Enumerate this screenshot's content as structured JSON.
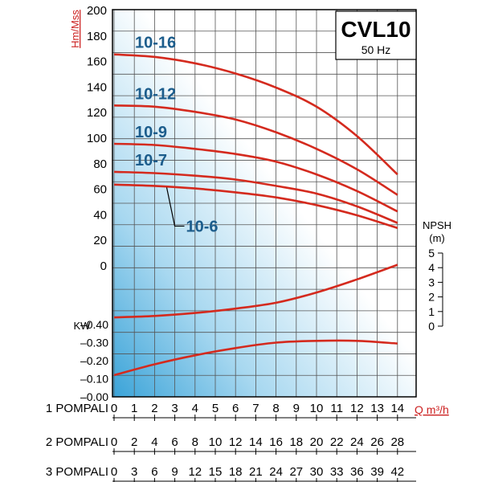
{
  "model_box": {
    "title": "CVL10",
    "frequency": "50 Hz"
  },
  "chart_data": {
    "type": "line",
    "title": "CVL10",
    "subtitle": "50 Hz",
    "grid": true,
    "colors": {
      "curve": "#d42a1e",
      "model_label": "#1c5d8c",
      "axis_label": "#cc2222",
      "grid": "#555555"
    },
    "head_axis": {
      "label": "Hm/Mss",
      "range": [
        0,
        200
      ],
      "tick_labels": [
        "200",
        "180",
        "160",
        "140",
        "120",
        "100",
        "80",
        "60",
        "40",
        "20",
        "0"
      ]
    },
    "npsh_axis": {
      "label": "NPSH",
      "unit": "(m)",
      "range": [
        0,
        5
      ],
      "tick_labels": [
        "5",
        "4",
        "3",
        "2",
        "1",
        "0"
      ]
    },
    "power_axis": {
      "label": "KW",
      "range": [
        0,
        0.4
      ],
      "tick_labels": [
        "–0.40",
        "–0.30",
        "–0.20",
        "–0.10",
        "–0.00"
      ]
    },
    "flow_axis": {
      "label": "Q m³/h",
      "rows": [
        {
          "name": "1 POMPALI",
          "ticks": [
            "0",
            "1",
            "2",
            "3",
            "4",
            "5",
            "6",
            "7",
            "8",
            "9",
            "10",
            "11",
            "12",
            "13",
            "14"
          ]
        },
        {
          "name": "2 POMPALI",
          "ticks": [
            "0",
            "2",
            "4",
            "6",
            "8",
            "10",
            "12",
            "14",
            "16",
            "18",
            "20",
            "22",
            "24",
            "26",
            "28"
          ]
        },
        {
          "name": "3 POMPALI",
          "ticks": [
            "0",
            "3",
            "6",
            "9",
            "12",
            "15",
            "18",
            "21",
            "24",
            "27",
            "30",
            "33",
            "36",
            "39",
            "42"
          ]
        }
      ]
    },
    "series": [
      {
        "name": "10-16",
        "x": [
          0,
          2,
          4,
          6,
          8,
          10,
          12,
          14
        ],
        "y": [
          165,
          163,
          158,
          150,
          139,
          124,
          101,
          71
        ]
      },
      {
        "name": "10-12",
        "x": [
          0,
          2,
          4,
          6,
          8,
          10,
          12,
          14
        ],
        "y": [
          125,
          124,
          120,
          114,
          104,
          91,
          75,
          55
        ]
      },
      {
        "name": "10-9",
        "x": [
          0,
          2,
          4,
          6,
          8,
          10,
          12,
          14
        ],
        "y": [
          95,
          94,
          91,
          87,
          81,
          71,
          58,
          42
        ]
      },
      {
        "name": "10-7",
        "x": [
          0,
          2,
          4,
          6,
          8,
          10,
          12,
          14
        ],
        "y": [
          73,
          72,
          70,
          67,
          62,
          56,
          46,
          33
        ]
      },
      {
        "name": "10-6",
        "x": [
          0,
          2,
          4,
          6,
          8,
          10,
          12,
          14
        ],
        "y": [
          63,
          62,
          60,
          57,
          53,
          47,
          39,
          29
        ]
      }
    ],
    "npsh_curve": {
      "x": [
        0,
        2,
        4,
        6,
        8,
        10,
        12,
        14
      ],
      "y": [
        0.6,
        0.7,
        0.9,
        1.2,
        1.6,
        2.3,
        3.2,
        4.2
      ]
    },
    "power_curve": {
      "x": [
        0,
        2,
        4,
        6,
        8,
        10,
        12,
        14
      ],
      "y": [
        0.12,
        0.18,
        0.23,
        0.27,
        0.3,
        0.31,
        0.31,
        0.295
      ]
    }
  }
}
